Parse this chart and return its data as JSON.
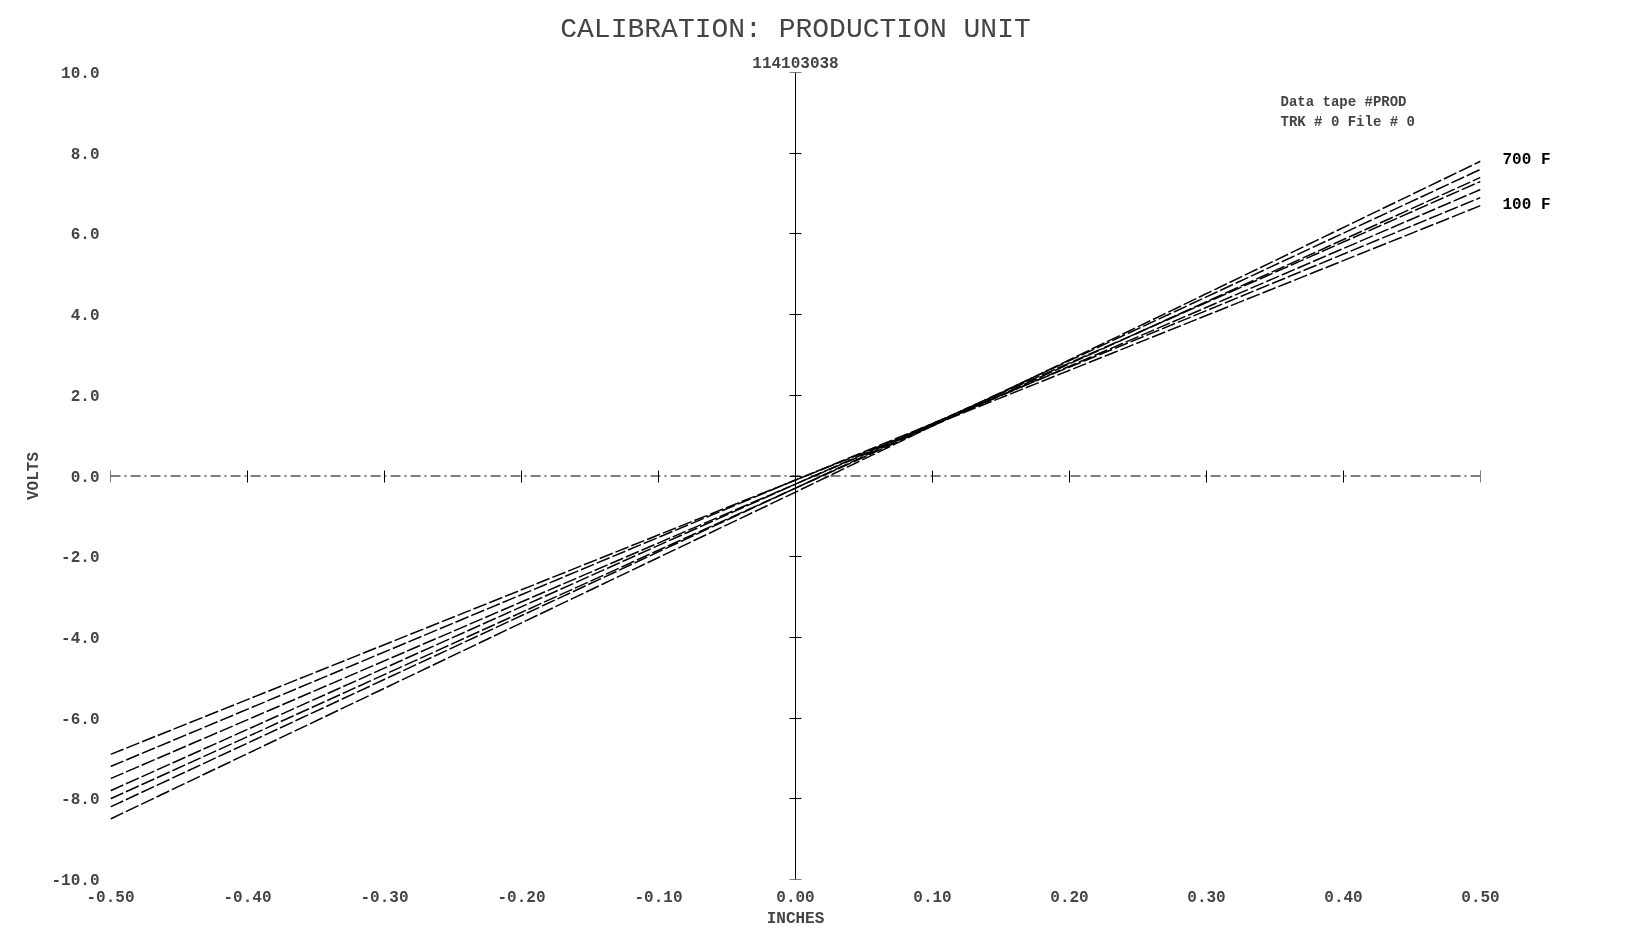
{
  "chart_data": {
    "type": "line",
    "title": "CALIBRATION: PRODUCTION UNIT",
    "subtitle": "114103038",
    "xlabel": "INCHES",
    "ylabel": "VOLTS",
    "annotations": [
      "Data tape #PROD",
      "TRK # 0 File # 0"
    ],
    "x": [
      -0.5,
      0.0,
      0.5
    ],
    "series": [
      {
        "name": "100 F",
        "color": "#000000",
        "values": [
          -6.9,
          -0.1,
          6.7
        ]
      },
      {
        "color": "#000000",
        "values": [
          -7.2,
          -0.1,
          6.9
        ]
      },
      {
        "color": "#000000",
        "values": [
          -7.5,
          -0.2,
          7.1
        ]
      },
      {
        "color": "#000000",
        "values": [
          -7.8,
          -0.2,
          7.3
        ]
      },
      {
        "color": "#000000",
        "values": [
          -8.0,
          -0.3,
          7.4
        ]
      },
      {
        "color": "#000000",
        "values": [
          -8.2,
          -0.3,
          7.6
        ]
      },
      {
        "name": "700 F",
        "color": "#000000",
        "values": [
          -8.5,
          -0.4,
          7.8
        ]
      }
    ],
    "xlim": [
      -0.5,
      0.5
    ],
    "ylim": [
      -10,
      10
    ],
    "xticks": [
      {
        "value": -0.5,
        "label": "-0.50"
      },
      {
        "value": -0.4,
        "label": "-0.40"
      },
      {
        "value": -0.3,
        "label": "-0.30"
      },
      {
        "value": -0.2,
        "label": "-0.20"
      },
      {
        "value": -0.1,
        "label": "-0.10"
      },
      {
        "value": 0,
        "label": "0.00"
      },
      {
        "value": 0.1,
        "label": "0.10"
      },
      {
        "value": 0.2,
        "label": "0.20"
      },
      {
        "value": 0.3,
        "label": "0.30"
      },
      {
        "value": 0.4,
        "label": "0.40"
      },
      {
        "value": 0.5,
        "label": "0.50"
      }
    ],
    "yticks": [
      {
        "value": -10,
        "label": "-10.0"
      },
      {
        "value": -8,
        "label": "-8.0"
      },
      {
        "value": -6,
        "label": "-6.0"
      },
      {
        "value": -4,
        "label": "-4.0"
      },
      {
        "value": -2,
        "label": "-2.0"
      },
      {
        "value": 0,
        "label": "0.0"
      },
      {
        "value": 2,
        "label": "2.0"
      },
      {
        "value": 4,
        "label": "4.0"
      },
      {
        "value": 6,
        "label": "6.0"
      },
      {
        "value": 8,
        "label": "8.0"
      },
      {
        "value": 10,
        "label": "10.0"
      }
    ],
    "ref_lines": [
      {
        "axis": "y",
        "value": 0,
        "line_style": "dashed",
        "color": "#000000"
      }
    ],
    "grid": false,
    "legend": false,
    "line_style": "dashed",
    "marker": "none"
  }
}
